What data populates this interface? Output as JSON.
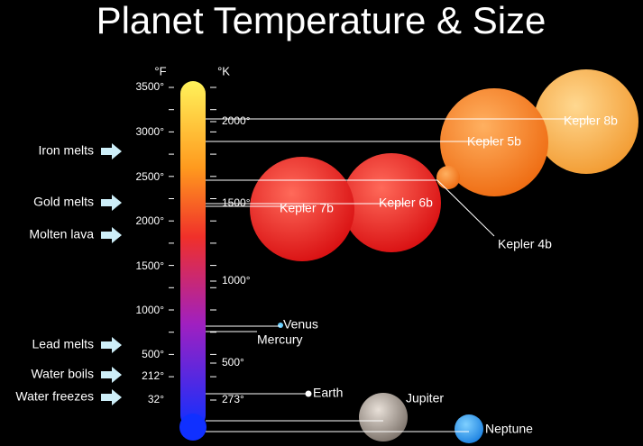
{
  "title": "Planet Temperature & Size",
  "fahrenheit_header": "°F",
  "kelvin_header": "°K",
  "fahrenheit_ticks": [
    "3500°",
    "3000°",
    "2500°",
    "2000°",
    "1500°",
    "1000°",
    "500°",
    "212°",
    "32°"
  ],
  "kelvin_ticks": [
    "2000°",
    "1500°",
    "1000°",
    "500°",
    "273°"
  ],
  "markers": [
    "Iron melts",
    "Gold melts",
    "Molten lava",
    "Lead melts",
    "Water boils",
    "Water freezes"
  ],
  "planets": [
    {
      "label": "Kepler 8b"
    },
    {
      "label": "Kepler 5b"
    },
    {
      "label": "Kepler 4b"
    },
    {
      "label": "Kepler 6b"
    },
    {
      "label": "Kepler 7b"
    },
    {
      "label": "Venus"
    },
    {
      "label": "Mercury"
    },
    {
      "label": "Earth"
    },
    {
      "label": "Jupiter"
    },
    {
      "label": "Neptune"
    }
  ]
}
